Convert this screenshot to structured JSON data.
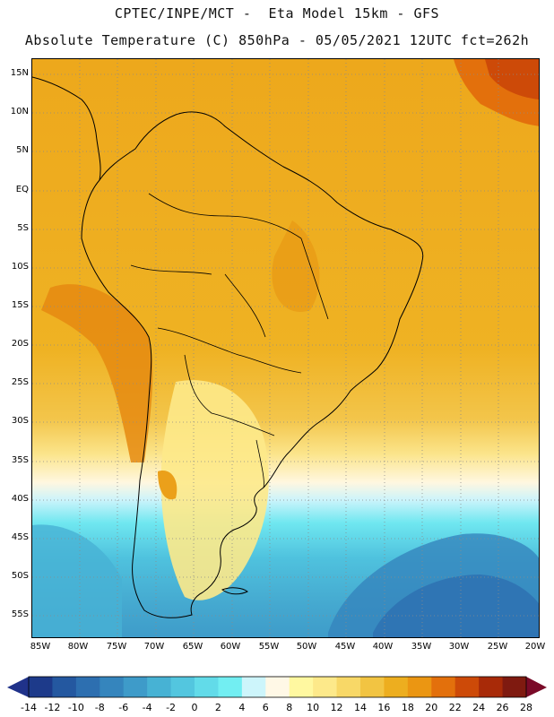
{
  "header": {
    "title_line1": "CPTEC/INPE/MCT -  Eta Model 15km - GFS",
    "title_line2": "Absolute Temperature (C) 850hPa - 05/05/2021 12UTC fct=262h"
  },
  "map": {
    "lat_labels": [
      "15N",
      "10N",
      "5N",
      "EQ",
      "5S",
      "10S",
      "15S",
      "20S",
      "25S",
      "30S",
      "35S",
      "40S",
      "45S",
      "50S",
      "55S"
    ],
    "lon_labels": [
      "85W",
      "80W",
      "75W",
      "70W",
      "65W",
      "60W",
      "55W",
      "50W",
      "45W",
      "40W",
      "35W",
      "30W",
      "25W",
      "20W"
    ]
  },
  "colorbar": {
    "labels": [
      "-14",
      "-12",
      "-10",
      "-8",
      "-6",
      "-4",
      "-2",
      "0",
      "2",
      "4",
      "6",
      "8",
      "10",
      "12",
      "14",
      "16",
      "18",
      "20",
      "22",
      "24",
      "26",
      "28"
    ],
    "colors": [
      "#1d3a8a",
      "#2458a0",
      "#2d6fb0",
      "#3585bd",
      "#3e9bc9",
      "#47b2d4",
      "#53c6df",
      "#62dbe9",
      "#72eef2",
      "#cdf5fb",
      "#fff8e6",
      "#fff8a0",
      "#fde98a",
      "#f8d867",
      "#f2c442",
      "#edae1f",
      "#eb9612",
      "#e3700c",
      "#cd4a08",
      "#a82a08",
      "#7f1a10"
    ],
    "low_color": "#20328a",
    "high_color": "#7a0a28"
  }
}
